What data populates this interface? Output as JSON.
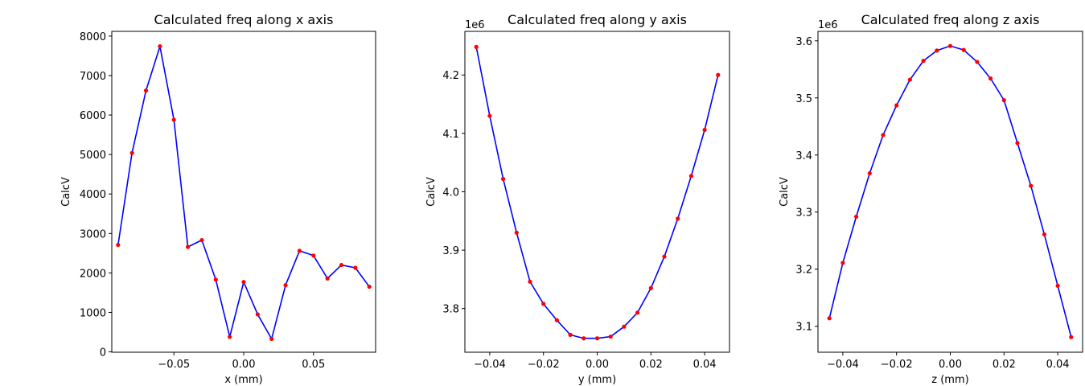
{
  "chart_data": [
    {
      "type": "line",
      "title": "Calculated freq along x axis",
      "xlabel": "x (mm)",
      "ylabel": "CalcV",
      "offset_label": "",
      "xlim": [
        -0.0945,
        0.0945
      ],
      "ylim": [
        -9,
        8120
      ],
      "xticks": [
        -0.05,
        0.0,
        0.05
      ],
      "xtick_labels": [
        "−0.05",
        "0.00",
        "0.05"
      ],
      "yticks": [
        0,
        1000,
        2000,
        3000,
        4000,
        5000,
        6000,
        7000,
        8000
      ],
      "ytick_labels": [
        "0",
        "1000",
        "2000",
        "3000",
        "4000",
        "5000",
        "6000",
        "7000",
        "8000"
      ],
      "line_color": "#0000ff",
      "marker_color": "#ff0000",
      "x": [
        -0.09,
        -0.08,
        -0.07,
        -0.06,
        -0.05,
        -0.04,
        -0.03,
        -0.02,
        -0.01,
        0.0,
        0.01,
        0.02,
        0.03,
        0.04,
        0.05,
        0.06,
        0.07,
        0.08,
        0.09
      ],
      "y": [
        2710,
        5040,
        6620,
        7740,
        5880,
        2660,
        2830,
        1830,
        380,
        1770,
        950,
        330,
        1690,
        2560,
        2440,
        1860,
        2200,
        2130,
        1650
      ]
    },
    {
      "type": "line",
      "title": "Calculated freq along y axis",
      "xlabel": "y (mm)",
      "ylabel": "CalcV",
      "offset_label": "1e6",
      "xlim": [
        -0.04925,
        0.04925
      ],
      "ylim": [
        3.7252,
        4.2747
      ],
      "xticks": [
        -0.04,
        -0.02,
        0.0,
        0.02,
        0.04
      ],
      "xtick_labels": [
        "−0.04",
        "−0.02",
        "0.00",
        "0.02",
        "0.04"
      ],
      "yticks": [
        3.8,
        3.9,
        4.0,
        4.1,
        4.2
      ],
      "ytick_labels": [
        "3.8",
        "3.9",
        "4.0",
        "4.1",
        "4.2"
      ],
      "line_color": "#0000ff",
      "marker_color": "#ff0000",
      "x": [
        -0.045,
        -0.04,
        -0.035,
        -0.03,
        -0.025,
        -0.02,
        -0.015,
        -0.01,
        -0.005,
        0.0,
        0.005,
        0.01,
        0.015,
        0.02,
        0.025,
        0.03,
        0.035,
        0.04,
        0.045
      ],
      "y": [
        4.248,
        4.13,
        4.022,
        3.93,
        3.846,
        3.808,
        3.78,
        3.755,
        3.749,
        3.749,
        3.752,
        3.769,
        3.793,
        3.835,
        3.889,
        3.954,
        4.027,
        4.106,
        4.2
      ]
    },
    {
      "type": "line",
      "title": "Calculated freq along z axis",
      "xlabel": "z (mm)",
      "ylabel": "CalcV",
      "offset_label": "1e6",
      "xlim": [
        -0.04925,
        0.04925
      ],
      "ylim": [
        3.0545,
        3.6166
      ],
      "xticks": [
        -0.04,
        -0.02,
        0.0,
        0.02,
        0.04
      ],
      "xtick_labels": [
        "−0.04",
        "−0.02",
        "0.00",
        "0.02",
        "0.04"
      ],
      "yticks": [
        3.1,
        3.2,
        3.3,
        3.4,
        3.5,
        3.6
      ],
      "ytick_labels": [
        "3.1",
        "3.2",
        "3.3",
        "3.4",
        "3.5",
        "3.6"
      ],
      "line_color": "#0000ff",
      "marker_color": "#ff0000",
      "x": [
        -0.045,
        -0.04,
        -0.035,
        -0.03,
        -0.025,
        -0.02,
        -0.015,
        -0.01,
        -0.005,
        0.0,
        0.005,
        0.01,
        0.015,
        0.02,
        0.025,
        0.03,
        0.035,
        0.04,
        0.045
      ],
      "y": [
        3.114,
        3.211,
        3.292,
        3.368,
        3.435,
        3.487,
        3.532,
        3.565,
        3.583,
        3.591,
        3.584,
        3.563,
        3.534,
        3.496,
        3.421,
        3.346,
        3.261,
        3.171,
        3.081
      ]
    }
  ]
}
